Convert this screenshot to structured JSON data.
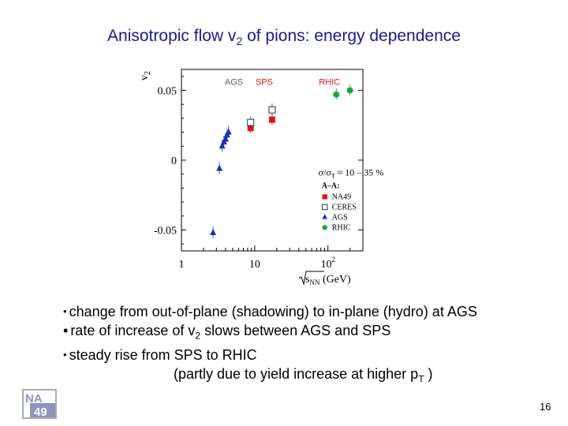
{
  "slide": {
    "title_pre": "Anisotropic flow v",
    "title_sub": "2",
    "title_post": " of pions: energy dependence",
    "page_number": "16",
    "logo": {
      "text_top": "NA",
      "text_bottom": "49"
    }
  },
  "bullets": [
    {
      "text": "change from out-of-plane (shadowing) to in-plane (hydro) at AGS"
    },
    {
      "pre": "rate of increase of v",
      "sub": "2",
      "post": " slows between AGS and SPS"
    },
    {
      "text": "steady rise from SPS to RHIC"
    },
    {
      "pre": "(partly due to yield increase at higher p",
      "sub": "T",
      "post": " )"
    }
  ],
  "colors": {
    "title": "#1a1a8c",
    "na49": "#e0161b",
    "ags": "#1b2fb5",
    "rhic": "#1fa63a",
    "ceres": "#333333"
  },
  "chart_data": {
    "type": "scatter",
    "xscale": "log",
    "xlim": [
      1,
      300
    ],
    "ylim": [
      -0.065,
      0.065
    ],
    "ylabel": "v",
    "ylabel_sub": "2",
    "xlabel": "s",
    "xlabel_sub": "NN",
    "xlabel_unit": " (GeV)",
    "yticks": [
      {
        "value": 0.05,
        "label": "0.05"
      },
      {
        "value": 0,
        "label": "0"
      },
      {
        "value": -0.05,
        "label": "-0.05"
      }
    ],
    "xticks": [
      {
        "value": 1,
        "label": "1"
      },
      {
        "value": 10,
        "label": "10"
      },
      {
        "value": 100,
        "label": "10",
        "exp": "2"
      }
    ],
    "region_labels": [
      {
        "text": "AGS",
        "x": 5.2,
        "y": 0.054
      },
      {
        "text": "SPS",
        "x": 13.5,
        "y": 0.054
      },
      {
        "text": "RHIC",
        "x": 105,
        "y": 0.054
      }
    ],
    "annotation": {
      "prefix": "σ/σ",
      "sub": "T",
      "suffix": " ≈ 10 – 35 %",
      "x": 74,
      "y": -0.011
    },
    "legend_title": "A–A:",
    "series": [
      {
        "name": "NA49",
        "marker": "square-filled",
        "color": "#e0161b",
        "points": [
          {
            "x": 8.8,
            "y": 0.023
          },
          {
            "x": 17.3,
            "y": 0.029
          }
        ]
      },
      {
        "name": "CERES",
        "marker": "square-open",
        "color": "#333333",
        "points": [
          {
            "x": 8.8,
            "y": 0.027
          },
          {
            "x": 17.3,
            "y": 0.036
          }
        ]
      },
      {
        "name": "AGS",
        "marker": "triangle",
        "color": "#1b2fb5",
        "points": [
          {
            "x": 2.7,
            "y": -0.052
          },
          {
            "x": 3.3,
            "y": -0.006
          },
          {
            "x": 3.6,
            "y": 0.01
          },
          {
            "x": 3.8,
            "y": 0.013
          },
          {
            "x": 4.0,
            "y": 0.015
          },
          {
            "x": 4.2,
            "y": 0.018
          },
          {
            "x": 4.4,
            "y": 0.02
          }
        ]
      },
      {
        "name": "RHIC",
        "marker": "circle",
        "color": "#1fa63a",
        "points": [
          {
            "x": 130,
            "y": 0.047
          },
          {
            "x": 200,
            "y": 0.05
          }
        ]
      }
    ]
  }
}
